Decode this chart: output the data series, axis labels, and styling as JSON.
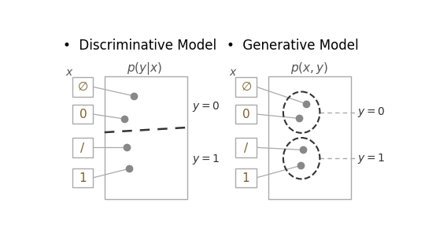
{
  "title_left": "Discriminative Model",
  "title_right": "Generative Model",
  "bullet": "•",
  "formula_left": "$p(y|x)$",
  "formula_right": "$p(x, y)$",
  "label_y0": "$y = 0$",
  "label_y1": "$y = 1$",
  "bg_color": "#ffffff",
  "dot_color": "#888888",
  "line_color": "#aaaaaa",
  "box_edge_color": "#aaaaaa",
  "digit_edge_color": "#aaaaaa",
  "dashed_sep_color": "#333333",
  "ellipse_color": "#333333",
  "dashed_label_color": "#aaaaaa",
  "label_color": "#333333",
  "formula_color": "#555555",
  "x_label_color": "#555555",
  "font_size_title": 12,
  "font_size_label": 10,
  "font_size_formula": 11,
  "font_size_digit": 11,
  "font_size_x": 10
}
